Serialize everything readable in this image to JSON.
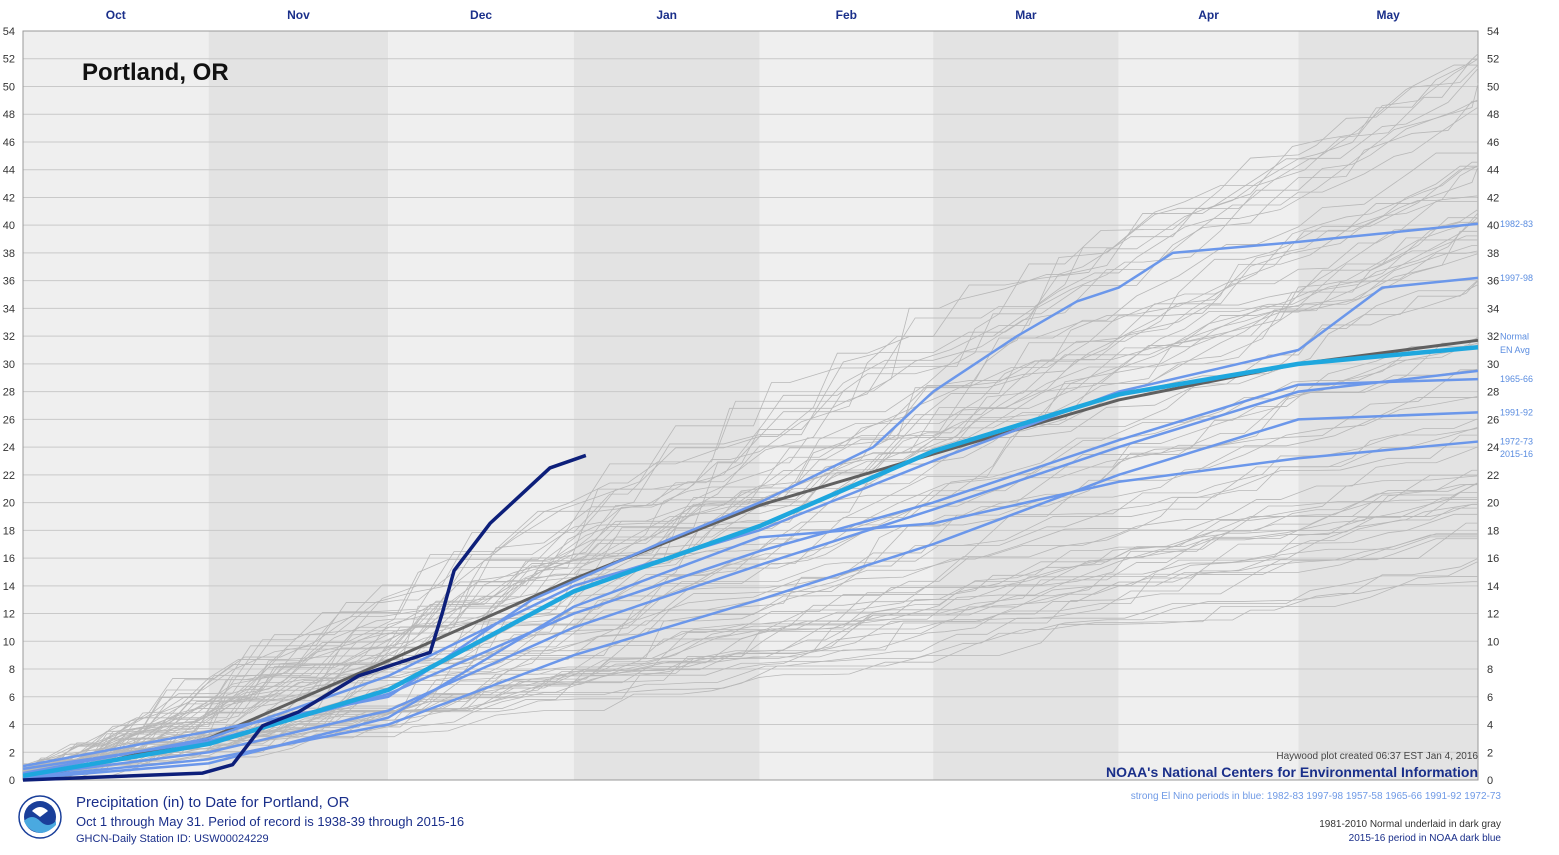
{
  "chart_data": {
    "type": "line",
    "title": "Portland, OR",
    "footer_title": "Precipitation (in) to Date for Portland, OR",
    "footer_subtitle": "Oct 1 through May 31. Period of record is 1938-39 through 2015-16",
    "station": "GHCN-Daily Station ID: USW00024229",
    "credit": "Haywood plot created 06:37 EST Jan 4, 2016",
    "agency": "NOAA's National Centers for Environmental Information",
    "el_nino_note": "strong El Nino periods in blue: 1982-83 1997-98 1957-58 1965-66 1991-92 1972-73",
    "normal_note": "1981-2010 Normal underlaid in dark gray",
    "current_note": "2015-16 period in NOAA dark blue",
    "x_axis_type": "date",
    "x_months": [
      "Oct",
      "Nov",
      "Dec",
      "Jan",
      "Feb",
      "Mar",
      "Apr",
      "May"
    ],
    "x_start": "Oct 1",
    "x_end": "May 31",
    "ylim": [
      0,
      54
    ],
    "y_ticks": [
      0,
      2,
      4,
      6,
      8,
      10,
      12,
      14,
      16,
      18,
      20,
      22,
      24,
      26,
      28,
      30,
      32,
      34,
      36,
      38,
      40,
      42,
      44,
      46,
      48,
      50,
      52,
      54
    ],
    "ylabel": "",
    "grid": true,
    "colors": {
      "current": "#0d1f7a",
      "el_nino": "#6b97ea",
      "el_nino_avg": "#1ea7de",
      "normal": "#606060",
      "other_years": "#b8b8b8",
      "month_band_dark": "#e3e3e3",
      "month_band_light": "#efefef"
    },
    "series": [
      {
        "name": "2015-16",
        "role": "current",
        "points": [
          [
            "Oct 1",
            0
          ],
          [
            "Oct 31",
            0.5
          ],
          [
            "Nov 5",
            1.1
          ],
          [
            "Nov 10",
            3.9
          ],
          [
            "Nov 16",
            4.9
          ],
          [
            "Nov 26",
            7.5
          ],
          [
            "Dec 1",
            8.2
          ],
          [
            "Dec 8",
            9.2
          ],
          [
            "Dec 10",
            12.0
          ],
          [
            "Dec 12",
            15.1
          ],
          [
            "Dec 18",
            18.5
          ],
          [
            "Dec 23",
            20.5
          ],
          [
            "Dec 28",
            22.5
          ],
          [
            "Jan 3",
            23.4
          ]
        ]
      },
      {
        "name": "1982-83",
        "role": "el_nino",
        "points": [
          [
            "Oct 1",
            1.0
          ],
          [
            "Nov 1",
            3.5
          ],
          [
            "Dec 1",
            6.0
          ],
          [
            "Dec 25",
            13.0
          ],
          [
            "Jan 15",
            17.0
          ],
          [
            "Feb 1",
            20.0
          ],
          [
            "Feb 20",
            24.0
          ],
          [
            "Mar 1",
            28.0
          ],
          [
            "Mar 15",
            32.0
          ],
          [
            "Mar 25",
            34.5
          ],
          [
            "Apr 1",
            35.5
          ],
          [
            "Apr 10",
            38.0
          ],
          [
            "May 1",
            38.8
          ],
          [
            "May 31",
            40.1
          ]
        ]
      },
      {
        "name": "1997-98",
        "role": "el_nino",
        "points": [
          [
            "Oct 1",
            0.5
          ],
          [
            "Nov 1",
            3.0
          ],
          [
            "Dec 1",
            7.5
          ],
          [
            "Jan 1",
            14.0
          ],
          [
            "Feb 1",
            18.0
          ],
          [
            "Mar 1",
            23.0
          ],
          [
            "Apr 1",
            28.0
          ],
          [
            "May 1",
            31.0
          ],
          [
            "May 15",
            35.5
          ],
          [
            "May 31",
            36.2
          ]
        ]
      },
      {
        "name": "1965-66",
        "role": "el_nino",
        "points": [
          [
            "Oct 1",
            0.8
          ],
          [
            "Nov 1",
            2.8
          ],
          [
            "Dec 1",
            6.2
          ],
          [
            "Jan 1",
            12.0
          ],
          [
            "Feb 1",
            16.5
          ],
          [
            "Mar 1",
            20.0
          ],
          [
            "Apr 1",
            24.5
          ],
          [
            "May 1",
            28.5
          ],
          [
            "May 31",
            28.9
          ]
        ]
      },
      {
        "name": "1991-92",
        "role": "el_nino",
        "points": [
          [
            "Oct 1",
            0.2
          ],
          [
            "Nov 1",
            1.5
          ],
          [
            "Dec 1",
            4.0
          ],
          [
            "Jan 1",
            9.0
          ],
          [
            "Feb 1",
            13.0
          ],
          [
            "Mar 1",
            17.0
          ],
          [
            "Apr 1",
            22.0
          ],
          [
            "May 1",
            26.0
          ],
          [
            "May 31",
            26.5
          ]
        ]
      },
      {
        "name": "1972-73",
        "role": "el_nino",
        "points": [
          [
            "Oct 1",
            0.1
          ],
          [
            "Nov 1",
            1.2
          ],
          [
            "Dec 1",
            4.5
          ],
          [
            "Jan 1",
            12.5
          ],
          [
            "Feb 1",
            17.5
          ],
          [
            "Mar 1",
            18.5
          ],
          [
            "Apr 1",
            21.5
          ],
          [
            "May 1",
            23.2
          ],
          [
            "May 31",
            24.4
          ]
        ]
      },
      {
        "name": "1957-58",
        "role": "el_nino",
        "points": [
          [
            "Oct 1",
            0.3
          ],
          [
            "Nov 1",
            2.0
          ],
          [
            "Dec 1",
            5.0
          ],
          [
            "Jan 1",
            11.0
          ],
          [
            "Feb 1",
            15.5
          ],
          [
            "Mar 1",
            19.5
          ],
          [
            "Apr 1",
            24.0
          ],
          [
            "May 1",
            28.0
          ],
          [
            "May 31",
            29.5
          ]
        ]
      },
      {
        "name": "EN Avg",
        "role": "el_nino_avg",
        "points": [
          [
            "Oct 1",
            0.3
          ],
          [
            "Nov 1",
            2.6
          ],
          [
            "Dec 1",
            6.5
          ],
          [
            "Jan 1",
            13.6
          ],
          [
            "Feb 1",
            18.3
          ],
          [
            "Mar 1",
            23.7
          ],
          [
            "Apr 1",
            27.8
          ],
          [
            "May 1",
            30.0
          ],
          [
            "May 31",
            31.2
          ]
        ]
      },
      {
        "name": "Normal",
        "role": "normal",
        "points": [
          [
            "Oct 1",
            0
          ],
          [
            "Nov 1",
            3.0
          ],
          [
            "Dec 1",
            8.6
          ],
          [
            "Jan 1",
            14.5
          ],
          [
            "Feb 1",
            19.8
          ],
          [
            "Mar 1",
            23.5
          ],
          [
            "Apr 1",
            27.4
          ],
          [
            "May 1",
            30.0
          ],
          [
            "May 31",
            31.7
          ]
        ]
      }
    ],
    "right_labels": [
      "1982-83",
      "1997-98",
      "Normal",
      "EN Avg",
      "1965-66",
      "1991-92",
      "1972-73",
      "2015-16"
    ]
  }
}
